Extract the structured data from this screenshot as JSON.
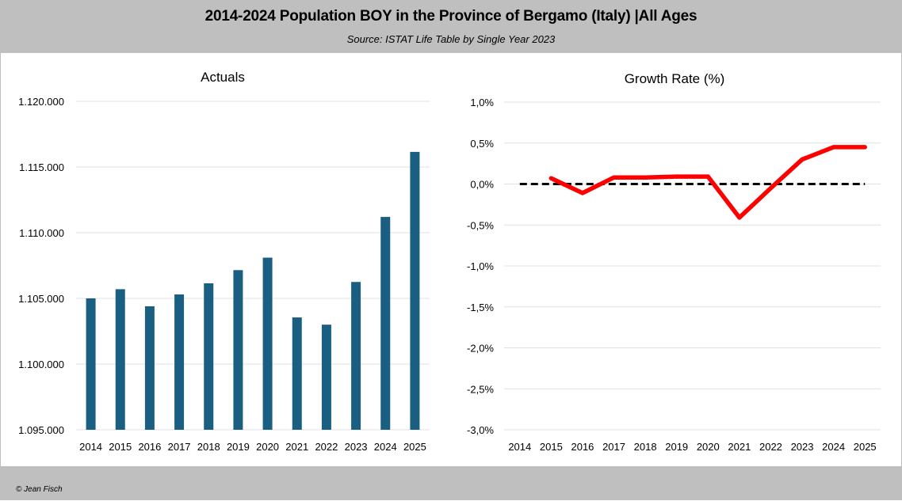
{
  "header": {
    "title": "2014-2024 Population BOY in the Province of Bergamo (Italy) |All Ages",
    "subtitle": "Source: ISTAT Life Table by Single Year 2023"
  },
  "footer": {
    "credit": "© Jean Fisch"
  },
  "colors": {
    "bar": "#1a5f82",
    "growth_line": "#ff0000",
    "zero_line": "#000000",
    "gridline": "#e0e0e0",
    "band": "#bfbfbf"
  },
  "chart_data": [
    {
      "type": "bar",
      "title": "Actuals",
      "xlabel": "",
      "ylabel": "",
      "categories": [
        "2014",
        "2015",
        "2016",
        "2017",
        "2018",
        "2019",
        "2020",
        "2021",
        "2022",
        "2023",
        "2024",
        "2025"
      ],
      "values": [
        1105000,
        1105700,
        1104400,
        1105300,
        1106150,
        1107150,
        1108100,
        1103550,
        1103000,
        1106250,
        1111200,
        1116150
      ],
      "ylim": [
        1095000,
        1120000
      ],
      "yticks": [
        1095000,
        1100000,
        1105000,
        1110000,
        1115000,
        1120000
      ],
      "ytick_labels": [
        "1.095.000",
        "1.100.000",
        "1.105.000",
        "1.110.000",
        "1.115.000",
        "1.120.000"
      ],
      "grid": true,
      "legend": "none"
    },
    {
      "type": "line",
      "title": "Growth Rate (%)",
      "xlabel": "",
      "ylabel": "",
      "categories": [
        "2014",
        "2015",
        "2016",
        "2017",
        "2018",
        "2019",
        "2020",
        "2021",
        "2022",
        "2023",
        "2024",
        "2025"
      ],
      "series": [
        {
          "name": "Growth Rate",
          "values": [
            null,
            0.07,
            -0.11,
            0.08,
            0.08,
            0.09,
            0.09,
            -0.41,
            -0.05,
            0.3,
            0.45,
            0.45
          ]
        },
        {
          "name": "Zero reference",
          "style": "dashed",
          "values": [
            0,
            0,
            0,
            0,
            0,
            0,
            0,
            0,
            0,
            0,
            0,
            0
          ]
        }
      ],
      "ylim": [
        -3.0,
        1.0
      ],
      "yticks": [
        1.0,
        0.5,
        0.0,
        -0.5,
        -1.0,
        -1.5,
        -2.0,
        -2.5,
        -3.0
      ],
      "ytick_labels": [
        "1,0%",
        "0,5%",
        "0,0%",
        "-0,5%",
        "-1,0%",
        "-1,5%",
        "-2,0%",
        "-2,5%",
        "-3,0%"
      ],
      "grid": true,
      "legend": "none"
    }
  ]
}
